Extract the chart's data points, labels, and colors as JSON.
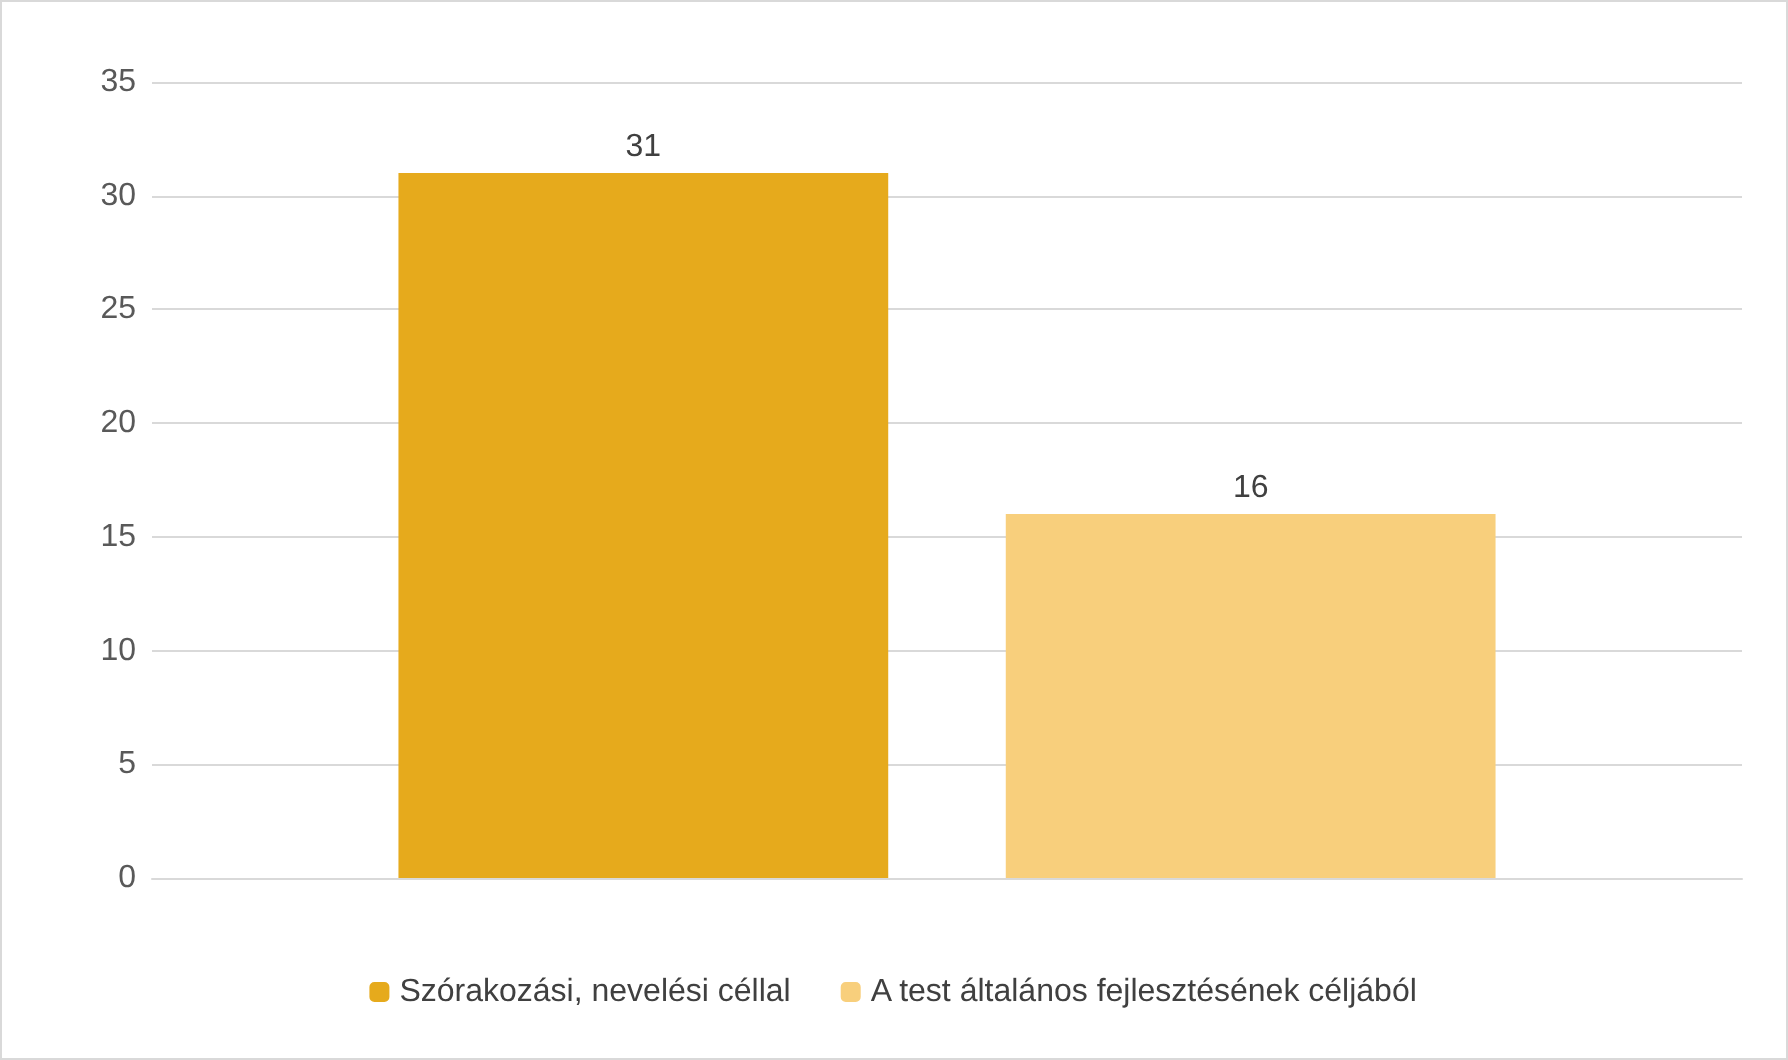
{
  "chart_data": {
    "type": "bar",
    "categories": [
      null
    ],
    "series": [
      {
        "name": "Szórakozási, nevelési céllal",
        "color": "#e6aa1c",
        "values": [
          31
        ]
      },
      {
        "name": "A test általános fejlesztésének céljából",
        "color": "#f8cf7c",
        "values": [
          16
        ]
      }
    ],
    "ylim": [
      0,
      35
    ],
    "yticks": [
      0,
      5,
      10,
      15,
      20,
      25,
      30,
      35
    ],
    "grid": "y",
    "legend": "bottom",
    "data_labels": true
  }
}
